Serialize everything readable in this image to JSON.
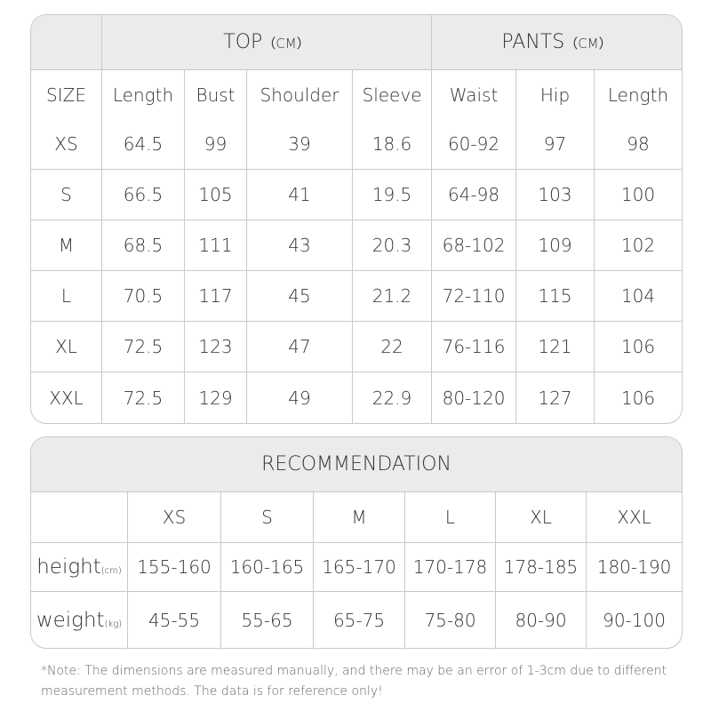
{
  "size_table": {
    "top_title": "TOP",
    "top_unit": "（CM）",
    "pants_title": "PANTS",
    "pants_unit": "（CM）",
    "columns": [
      "SIZE",
      "Length",
      "Bust",
      "Shoulder",
      "Sleeve",
      "Waist",
      "Hip",
      "Length"
    ],
    "rows": [
      [
        "XS",
        "64.5",
        "99",
        "39",
        "18.6",
        "60-92",
        "97",
        "98"
      ],
      [
        "S",
        "66.5",
        "105",
        "41",
        "19.5",
        "64-98",
        "103",
        "100"
      ],
      [
        "M",
        "68.5",
        "111",
        "43",
        "20.3",
        "68-102",
        "109",
        "102"
      ],
      [
        "L",
        "70.5",
        "117",
        "45",
        "21.2",
        "72-110",
        "115",
        "104"
      ],
      [
        "XL",
        "72.5",
        "123",
        "47",
        "22",
        "76-116",
        "121",
        "106"
      ],
      [
        "XXL",
        "72.5",
        "129",
        "49",
        "22.9",
        "80-120",
        "127",
        "106"
      ]
    ]
  },
  "recommendation": {
    "title": "RECOMMENDATION",
    "sizes": [
      "XS",
      "S",
      "M",
      "L",
      "XL",
      "XXL"
    ],
    "height_label": "height",
    "height_unit": "(cm)",
    "height": [
      "155-160",
      "160-165",
      "165-170",
      "170-178",
      "178-185",
      "180-190"
    ],
    "weight_label": "weight",
    "weight_unit": "(kg)",
    "weight": [
      "45-55",
      "55-65",
      "65-75",
      "75-80",
      "80-90",
      "90-100"
    ]
  },
  "note": "*Note: The dimensions are measured manually, and there may be an error of 1-3cm due to different measurement methods. The data is for reference only!"
}
